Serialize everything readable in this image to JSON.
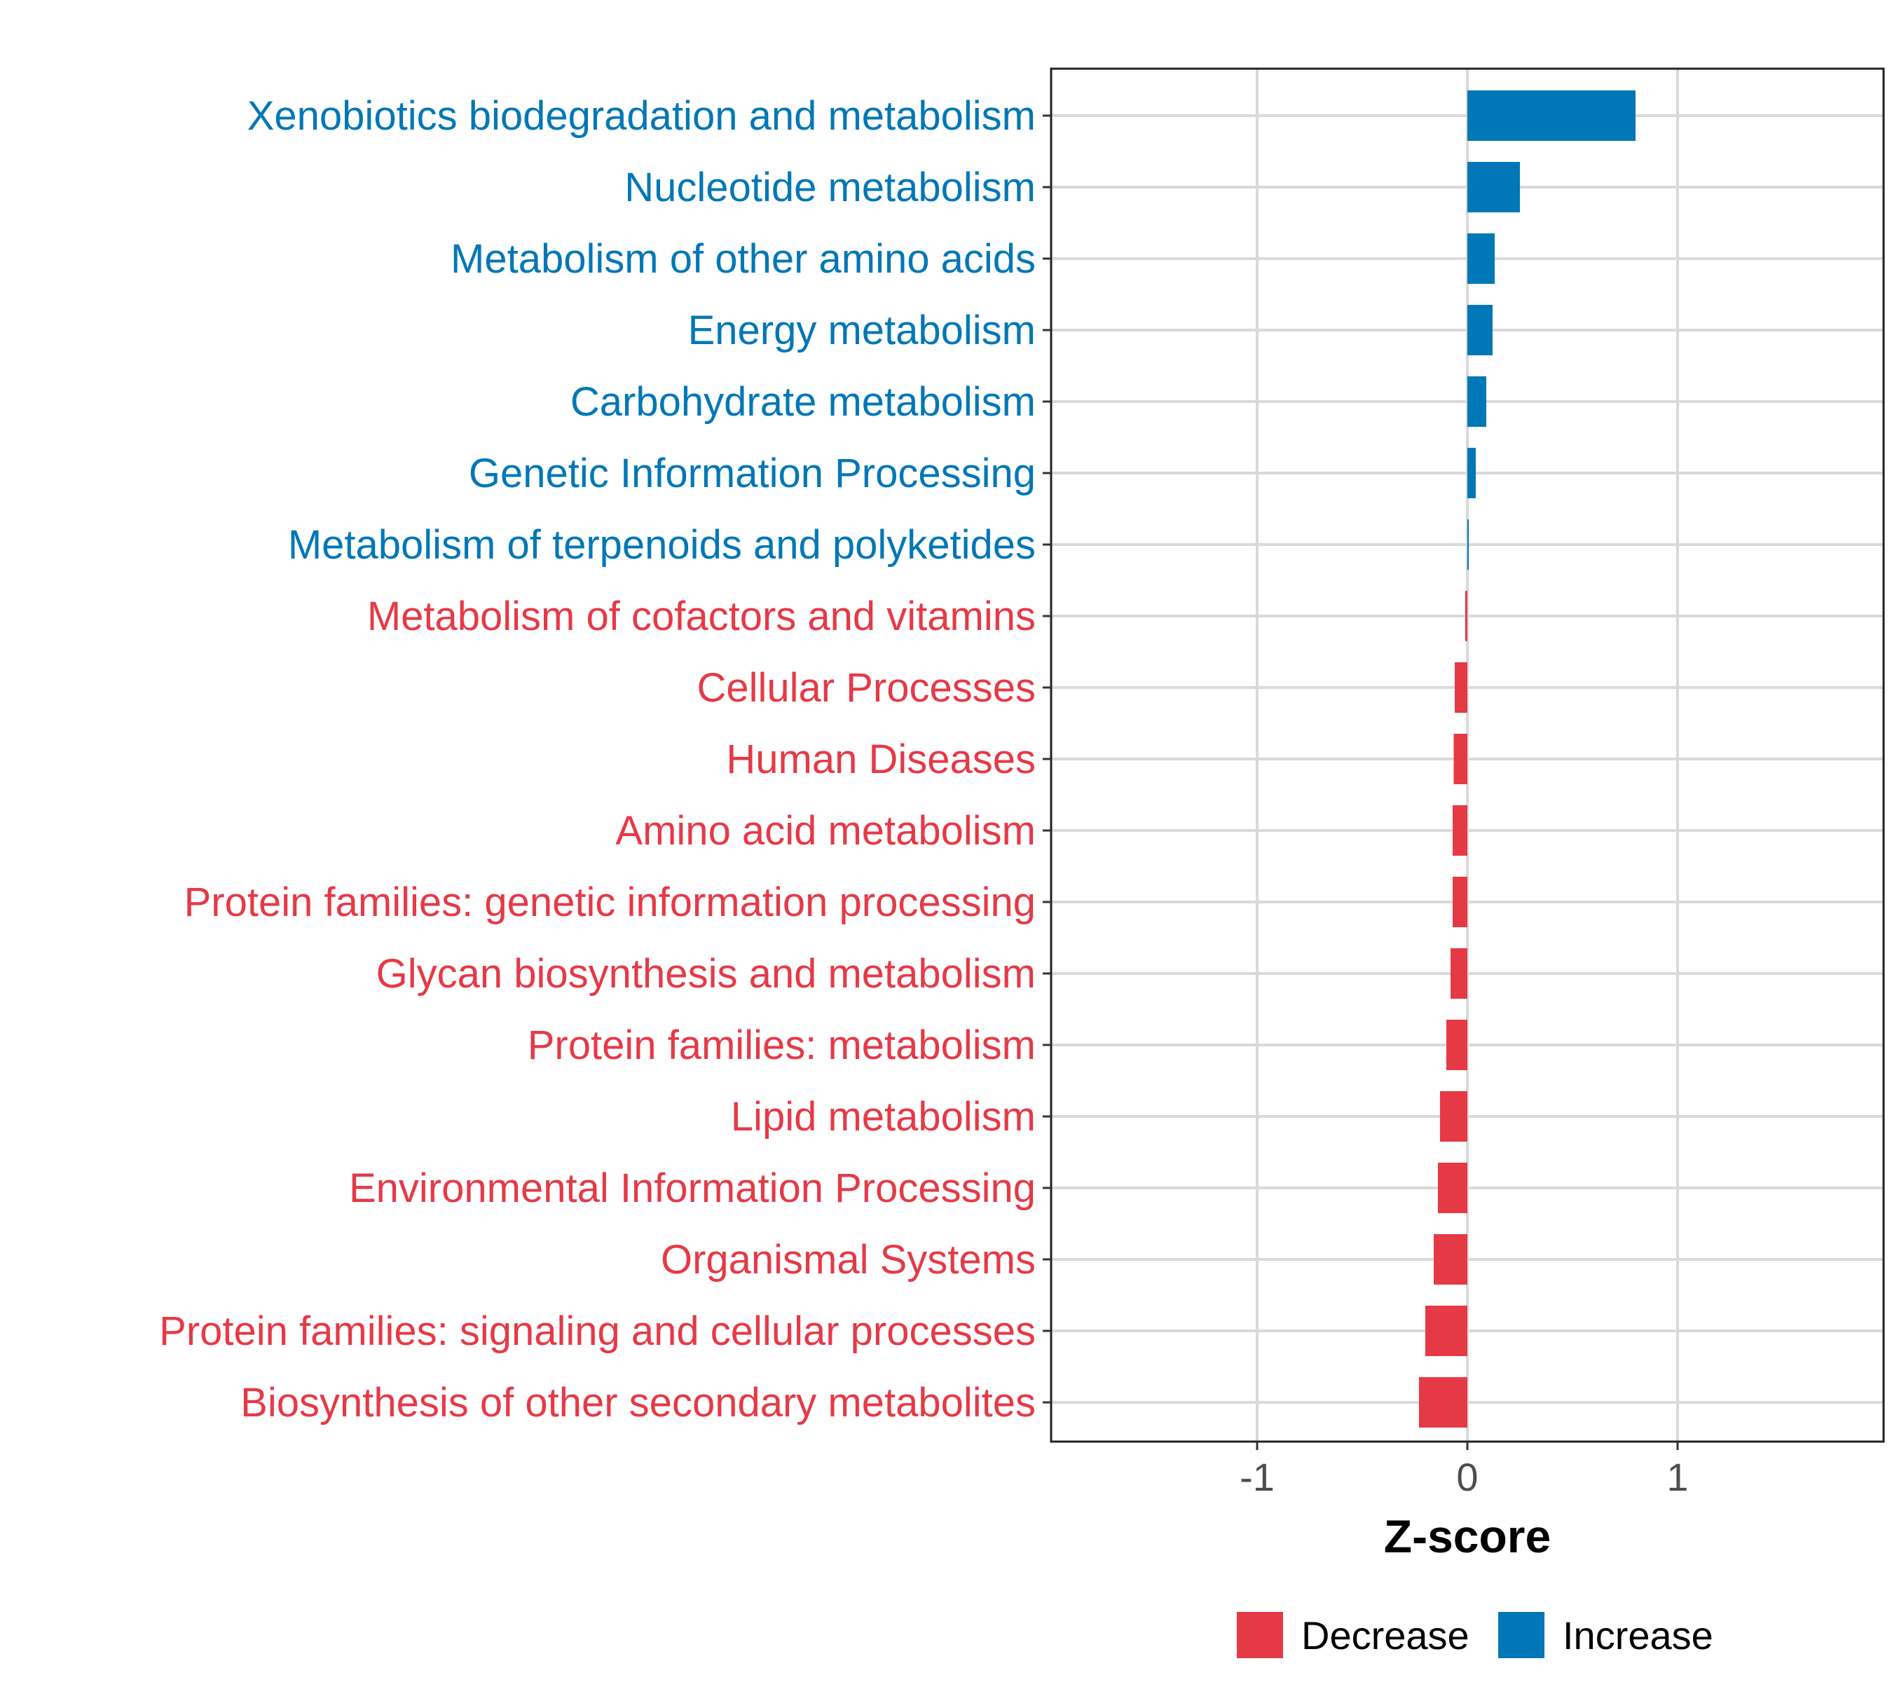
{
  "chart_data": {
    "type": "bar",
    "orientation": "horizontal",
    "title": "",
    "xlabel": "Z-score",
    "ylabel": "",
    "xlim": [
      -1.98,
      1.98
    ],
    "xticks": [
      -1,
      0,
      1
    ],
    "xtick_labels": [
      "-1",
      "0",
      "1"
    ],
    "grid": true,
    "legend_position": "bottom",
    "colors": {
      "Decrease": "#E63946",
      "Increase": "#0077B6"
    },
    "legend": [
      {
        "name": "Decrease",
        "color": "#E63946"
      },
      {
        "name": "Increase",
        "color": "#0077B6"
      }
    ],
    "categories": [
      "Xenobiotics biodegradation and metabolism",
      "Nucleotide metabolism",
      "Metabolism of other amino acids",
      "Energy metabolism",
      "Carbohydrate metabolism",
      "Genetic Information Processing",
      "Metabolism of terpenoids and polyketides",
      "Metabolism of cofactors and vitamins",
      "Cellular Processes",
      "Human Diseases",
      "Amino acid metabolism",
      "Protein families: genetic information processing",
      "Glycan biosynthesis and metabolism",
      "Protein families: metabolism",
      "Lipid metabolism",
      "Environmental Information Processing",
      "Organismal Systems",
      "Protein families: signaling and cellular processes",
      "Biosynthesis of other secondary metabolites"
    ],
    "values": [
      0.8,
      0.25,
      0.13,
      0.12,
      0.09,
      0.04,
      0.005,
      -0.01,
      -0.06,
      -0.065,
      -0.07,
      -0.07,
      -0.08,
      -0.1,
      -0.13,
      -0.14,
      -0.16,
      -0.2,
      -0.23
    ],
    "direction": [
      "Increase",
      "Increase",
      "Increase",
      "Increase",
      "Increase",
      "Increase",
      "Increase",
      "Decrease",
      "Decrease",
      "Decrease",
      "Decrease",
      "Decrease",
      "Decrease",
      "Decrease",
      "Decrease",
      "Decrease",
      "Decrease",
      "Decrease",
      "Decrease"
    ]
  }
}
